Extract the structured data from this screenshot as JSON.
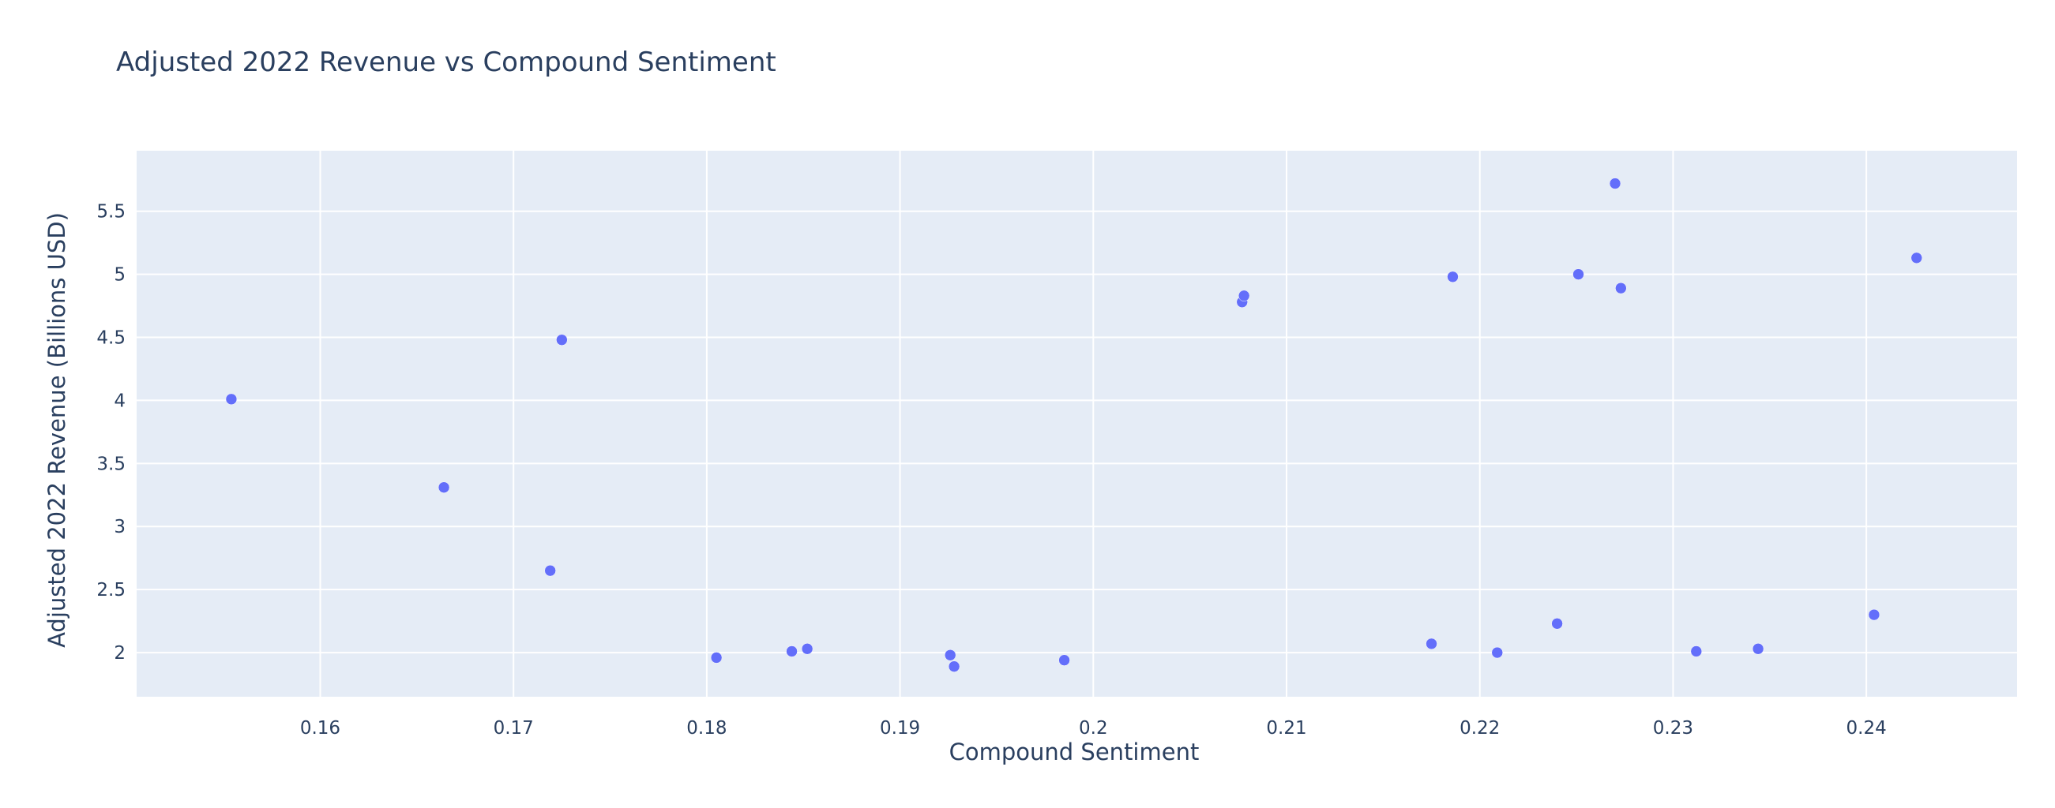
{
  "chart_data": {
    "type": "scatter",
    "title": "Adjusted 2022 Revenue vs Compound Sentiment",
    "xlabel": "Compound Sentiment",
    "ylabel": "Adjusted 2022 Revenue (Billions USD)",
    "xlim": [
      0.1505,
      0.2478
    ],
    "ylim": [
      1.65,
      5.98
    ],
    "x_ticks": [
      0.16,
      0.17,
      0.18,
      0.19,
      0.2,
      0.21,
      0.22,
      0.23,
      0.24
    ],
    "x_tick_labels": [
      "0.16",
      "0.17",
      "0.18",
      "0.19",
      "0.2",
      "0.21",
      "0.22",
      "0.23",
      "0.24"
    ],
    "y_ticks": [
      2,
      2.5,
      3,
      3.5,
      4,
      4.5,
      5,
      5.5
    ],
    "y_tick_labels": [
      "2",
      "2.5",
      "3",
      "3.5",
      "4",
      "4.5",
      "5",
      "5.5"
    ],
    "grid": true,
    "colors": {
      "marker": "#636efa",
      "plot_bg": "#e5ecf6",
      "grid": "#ffffff",
      "text": "#2a3f5f"
    },
    "x": [
      0.1554,
      0.1664,
      0.1719,
      0.1725,
      0.1805,
      0.1844,
      0.1852,
      0.1926,
      0.1928,
      0.1985,
      0.2077,
      0.2078,
      0.2175,
      0.2186,
      0.2209,
      0.224,
      0.2251,
      0.227,
      0.2273,
      0.2312,
      0.2344,
      0.2404,
      0.2426
    ],
    "y": [
      4.01,
      3.31,
      2.65,
      4.48,
      1.96,
      2.01,
      2.03,
      1.98,
      1.89,
      1.94,
      4.78,
      4.83,
      2.07,
      4.98,
      2.0,
      2.23,
      5.0,
      5.72,
      4.89,
      2.01,
      2.03,
      2.3,
      5.13
    ]
  }
}
